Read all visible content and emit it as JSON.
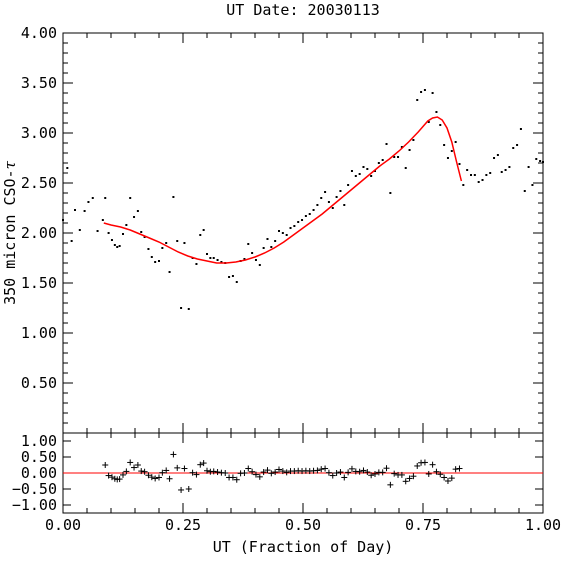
{
  "chart_data": {
    "type": "scatter",
    "title": "UT Date: 20030113",
    "xlabel": "UT (Fraction of Day)",
    "ylabel_text": "350 micron CSO-",
    "ylabel_symbol": "τ",
    "xlim": [
      0,
      1
    ],
    "grid": false,
    "legend": "none",
    "colors": {
      "points": "#000000",
      "fit": "#ff0000",
      "zero_line": "#ff0000",
      "axes": "#000000"
    },
    "main_panel": {
      "ylim": [
        0,
        4
      ],
      "x_ticks": [
        0,
        0.25,
        0.5,
        0.75,
        1.0
      ],
      "y_ticks": [
        0.5,
        1.0,
        1.5,
        2.0,
        2.5,
        3.0,
        3.5,
        4.0
      ],
      "y_tick_labels": [
        "0.50",
        "1.00",
        "1.50",
        "2.00",
        "2.50",
        "3.00",
        "3.50",
        "4.00"
      ],
      "series": [
        {
          "marker": "dot",
          "x": [
            0.0,
            0.009,
            0.018,
            0.025,
            0.035,
            0.045,
            0.053,
            0.062,
            0.072,
            0.083,
            0.088,
            0.095,
            0.102,
            0.108,
            0.113,
            0.118,
            0.125,
            0.132,
            0.14,
            0.148,
            0.156,
            0.163,
            0.17,
            0.178,
            0.185,
            0.192,
            0.2,
            0.207,
            0.215,
            0.222,
            0.23,
            0.238,
            0.246,
            0.253,
            0.262,
            0.27,
            0.278,
            0.286,
            0.293,
            0.3,
            0.307,
            0.314,
            0.322,
            0.33,
            0.338,
            0.346,
            0.354,
            0.362,
            0.37,
            0.378,
            0.386,
            0.394,
            0.402,
            0.41,
            0.418,
            0.426,
            0.434,
            0.442,
            0.45,
            0.458,
            0.466,
            0.474,
            0.482,
            0.49,
            0.498,
            0.506,
            0.514,
            0.522,
            0.53,
            0.538,
            0.546,
            0.554,
            0.562,
            0.57,
            0.578,
            0.586,
            0.594,
            0.602,
            0.61,
            0.618,
            0.626,
            0.634,
            0.642,
            0.65,
            0.658,
            0.666,
            0.674,
            0.682,
            0.69,
            0.698,
            0.706,
            0.714,
            0.722,
            0.73,
            0.738,
            0.746,
            0.754,
            0.762,
            0.77,
            0.778,
            0.786,
            0.794,
            0.802,
            0.81,
            0.818,
            0.826,
            0.834,
            0.842,
            0.85,
            0.858,
            0.866,
            0.874,
            0.882,
            0.89,
            0.898,
            0.906,
            0.914,
            0.922,
            0.93,
            0.938,
            0.946,
            0.954,
            0.962,
            0.97,
            0.978,
            0.986,
            0.994,
            1.0
          ],
          "y": [
            2.13,
            2.65,
            1.92,
            2.23,
            2.03,
            2.22,
            2.31,
            2.35,
            2.02,
            2.13,
            2.35,
            2.0,
            1.93,
            1.88,
            1.86,
            1.87,
            1.99,
            2.08,
            2.35,
            2.16,
            2.22,
            2.01,
            1.96,
            1.84,
            1.76,
            1.71,
            1.72,
            1.85,
            1.9,
            1.61,
            2.36,
            1.92,
            1.25,
            1.9,
            1.24,
            1.75,
            1.69,
            1.98,
            2.03,
            1.79,
            1.75,
            1.75,
            1.73,
            1.71,
            1.7,
            1.56,
            1.57,
            1.51,
            1.72,
            1.74,
            1.89,
            1.8,
            1.73,
            1.68,
            1.85,
            1.94,
            1.86,
            1.92,
            2.02,
            2.0,
            1.98,
            2.05,
            2.07,
            2.11,
            2.13,
            2.17,
            2.19,
            2.23,
            2.28,
            2.35,
            2.41,
            2.31,
            2.25,
            2.36,
            2.42,
            2.28,
            2.48,
            2.62,
            2.57,
            2.59,
            2.66,
            2.64,
            2.57,
            2.62,
            2.7,
            2.73,
            2.89,
            2.4,
            2.76,
            2.76,
            2.86,
            2.65,
            2.83,
            2.93,
            3.33,
            3.41,
            3.43,
            3.11,
            3.4,
            3.21,
            3.08,
            2.88,
            2.75,
            2.82,
            2.91,
            2.69,
            2.48,
            2.63,
            2.58,
            2.58,
            2.51,
            2.53,
            2.58,
            2.6,
            2.75,
            2.78,
            2.61,
            2.63,
            2.66,
            2.85,
            2.88,
            3.04,
            2.42,
            2.66,
            2.48,
            2.74,
            2.72,
            2.71
          ]
        },
        {
          "name": "fit",
          "marker": "line",
          "x": [
            0.085,
            0.1,
            0.12,
            0.14,
            0.16,
            0.18,
            0.2,
            0.22,
            0.24,
            0.26,
            0.28,
            0.3,
            0.32,
            0.34,
            0.36,
            0.38,
            0.4,
            0.42,
            0.44,
            0.46,
            0.48,
            0.5,
            0.52,
            0.54,
            0.56,
            0.58,
            0.6,
            0.62,
            0.64,
            0.66,
            0.68,
            0.7,
            0.72,
            0.74,
            0.76,
            0.77,
            0.78,
            0.79,
            0.8,
            0.81,
            0.82,
            0.83
          ],
          "y": [
            2.1,
            2.08,
            2.06,
            2.03,
            1.99,
            1.95,
            1.91,
            1.86,
            1.81,
            1.77,
            1.74,
            1.72,
            1.7,
            1.7,
            1.71,
            1.73,
            1.76,
            1.8,
            1.85,
            1.91,
            1.98,
            2.05,
            2.12,
            2.19,
            2.27,
            2.35,
            2.43,
            2.51,
            2.59,
            2.67,
            2.74,
            2.82,
            2.91,
            3.01,
            3.12,
            3.15,
            3.16,
            3.13,
            3.05,
            2.91,
            2.71,
            2.52
          ]
        }
      ]
    },
    "residual_panel": {
      "ylim": [
        -1.25,
        1.25
      ],
      "y_ticks": [
        1.0,
        0.5,
        0.0,
        -0.5,
        -1.0
      ],
      "y_tick_labels": [
        "1.00",
        "0.50",
        "0.00",
        "−0.50",
        "−1.00"
      ],
      "zero_line": 0.0,
      "series": [
        {
          "marker": "plus",
          "x": [
            0.088,
            0.095,
            0.102,
            0.108,
            0.113,
            0.118,
            0.125,
            0.132,
            0.14,
            0.148,
            0.156,
            0.163,
            0.17,
            0.178,
            0.185,
            0.192,
            0.2,
            0.207,
            0.215,
            0.222,
            0.23,
            0.238,
            0.246,
            0.253,
            0.262,
            0.27,
            0.278,
            0.286,
            0.293,
            0.3,
            0.307,
            0.314,
            0.322,
            0.33,
            0.338,
            0.346,
            0.354,
            0.362,
            0.37,
            0.378,
            0.386,
            0.394,
            0.402,
            0.41,
            0.418,
            0.426,
            0.434,
            0.442,
            0.45,
            0.458,
            0.466,
            0.474,
            0.482,
            0.49,
            0.498,
            0.506,
            0.514,
            0.522,
            0.53,
            0.538,
            0.546,
            0.554,
            0.562,
            0.57,
            0.578,
            0.586,
            0.594,
            0.602,
            0.61,
            0.618,
            0.626,
            0.634,
            0.642,
            0.65,
            0.658,
            0.666,
            0.674,
            0.682,
            0.69,
            0.698,
            0.706,
            0.714,
            0.722,
            0.73,
            0.738,
            0.746,
            0.754,
            0.762,
            0.77,
            0.778,
            0.786,
            0.794,
            0.802,
            0.81,
            0.818,
            0.826
          ],
          "y": [
            0.25,
            -0.08,
            -0.13,
            -0.18,
            -0.2,
            -0.19,
            -0.06,
            0.05,
            0.33,
            0.17,
            0.25,
            0.06,
            0.04,
            -0.07,
            -0.13,
            -0.17,
            -0.14,
            0.01,
            0.08,
            -0.18,
            0.58,
            0.16,
            -0.53,
            0.14,
            -0.5,
            0.01,
            -0.05,
            0.26,
            0.31,
            0.07,
            0.04,
            0.05,
            0.03,
            0.01,
            0.0,
            -0.14,
            -0.14,
            -0.21,
            -0.01,
            0.0,
            0.14,
            0.04,
            -0.05,
            -0.12,
            0.03,
            0.09,
            -0.01,
            0.03,
            0.11,
            0.06,
            0.02,
            0.06,
            0.06,
            0.07,
            0.06,
            0.07,
            0.06,
            0.07,
            0.08,
            0.12,
            0.14,
            0.01,
            -0.08,
            0.0,
            0.03,
            -0.14,
            0.02,
            0.13,
            0.05,
            0.04,
            0.08,
            0.03,
            -0.07,
            -0.03,
            0.02,
            0.02,
            0.15,
            -0.37,
            -0.02,
            -0.06,
            -0.06,
            -0.26,
            -0.17,
            -0.1,
            0.22,
            0.32,
            0.33,
            -0.03,
            0.26,
            0.04,
            -0.04,
            -0.14,
            -0.25,
            -0.16,
            0.12,
            0.14
          ]
        }
      ]
    }
  }
}
